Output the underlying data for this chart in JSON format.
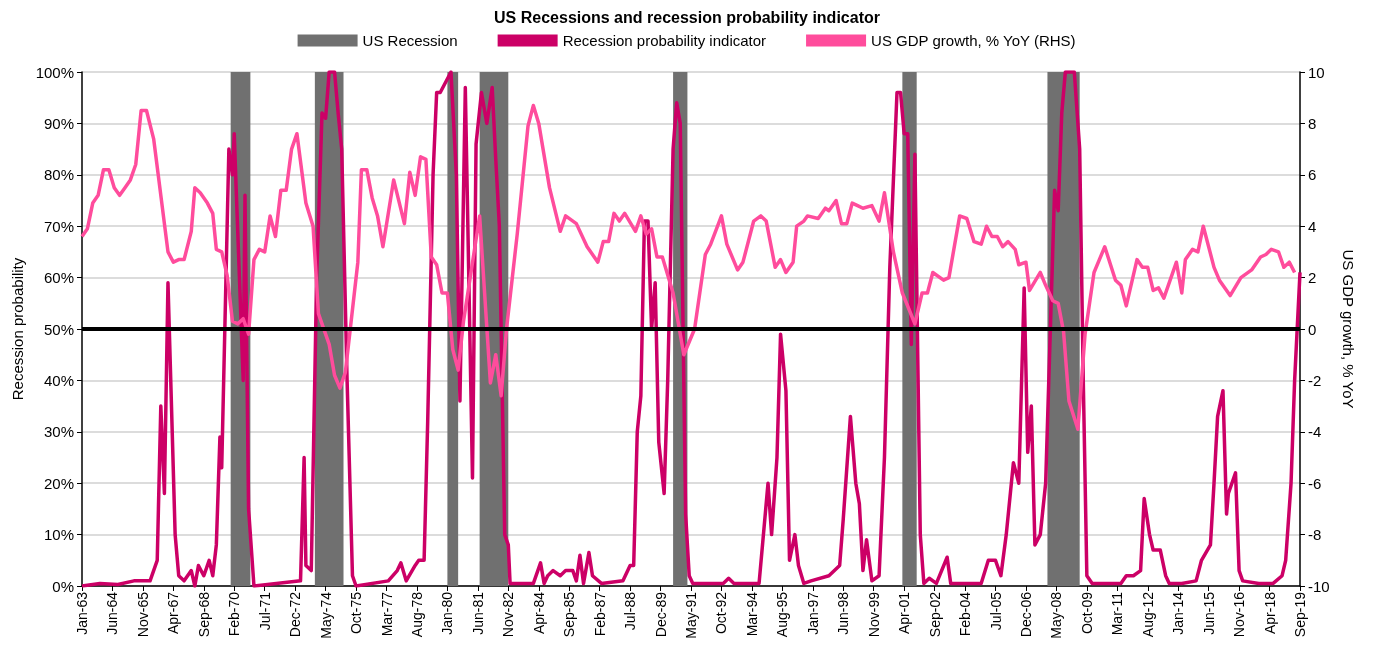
{
  "chart_data": {
    "type": "line",
    "title": "US Recessions and recession probability indicator",
    "ylabel": "Recession probability",
    "y2label": "US GDP growth, % YoY",
    "legend": "top",
    "grid": "y",
    "xlim": [
      "1963-01",
      "2019-09"
    ],
    "xticks": [
      {
        "value": "1963-01",
        "label": "Jan-63"
      },
      {
        "value": "1964-06",
        "label": "Jun-64"
      },
      {
        "value": "1965-11",
        "label": "Nov-65"
      },
      {
        "value": "1967-04",
        "label": "Apr-67"
      },
      {
        "value": "1968-09",
        "label": "Sep-68"
      },
      {
        "value": "1970-02",
        "label": "Feb-70"
      },
      {
        "value": "1971-07",
        "label": "Jul-71"
      },
      {
        "value": "1972-12",
        "label": "Dec-72"
      },
      {
        "value": "1974-05",
        "label": "May-74"
      },
      {
        "value": "1975-10",
        "label": "Oct-75"
      },
      {
        "value": "1977-03",
        "label": "Mar-77"
      },
      {
        "value": "1978-08",
        "label": "Aug-78"
      },
      {
        "value": "1980-01",
        "label": "Jan-80"
      },
      {
        "value": "1981-06",
        "label": "Jun-81"
      },
      {
        "value": "1982-11",
        "label": "Nov-82"
      },
      {
        "value": "1984-04",
        "label": "Apr-84"
      },
      {
        "value": "1985-09",
        "label": "Sep-85"
      },
      {
        "value": "1987-02",
        "label": "Feb-87"
      },
      {
        "value": "1988-07",
        "label": "Jul-88"
      },
      {
        "value": "1989-12",
        "label": "Dec-89"
      },
      {
        "value": "1991-05",
        "label": "May-91"
      },
      {
        "value": "1992-10",
        "label": "Oct-92"
      },
      {
        "value": "1994-03",
        "label": "Mar-94"
      },
      {
        "value": "1995-08",
        "label": "Aug-95"
      },
      {
        "value": "1997-01",
        "label": "Jan-97"
      },
      {
        "value": "1998-06",
        "label": "Jun-98"
      },
      {
        "value": "1999-11",
        "label": "Nov-99"
      },
      {
        "value": "2001-04",
        "label": "Apr-01"
      },
      {
        "value": "2002-09",
        "label": "Sep-02"
      },
      {
        "value": "2004-02",
        "label": "Feb-04"
      },
      {
        "value": "2005-07",
        "label": "Jul-05"
      },
      {
        "value": "2006-12",
        "label": "Dec-06"
      },
      {
        "value": "2008-05",
        "label": "May-08"
      },
      {
        "value": "2009-10",
        "label": "Oct-09"
      },
      {
        "value": "2011-03",
        "label": "Mar-11"
      },
      {
        "value": "2012-08",
        "label": "Aug-12"
      },
      {
        "value": "2014-01",
        "label": "Jan-14"
      },
      {
        "value": "2015-06",
        "label": "Jun-15"
      },
      {
        "value": "2016-11",
        "label": "Nov-16"
      },
      {
        "value": "2018-04",
        "label": "Apr-18"
      },
      {
        "value": "2019-09",
        "label": "Sep-19"
      }
    ],
    "ylim": [
      0,
      100
    ],
    "yticks": [
      {
        "value": 0,
        "label": "0%"
      },
      {
        "value": 10,
        "label": "10%"
      },
      {
        "value": 20,
        "label": "20%"
      },
      {
        "value": 30,
        "label": "30%"
      },
      {
        "value": 40,
        "label": "40%"
      },
      {
        "value": 50,
        "label": "50%"
      },
      {
        "value": 60,
        "label": "60%"
      },
      {
        "value": 70,
        "label": "70%"
      },
      {
        "value": 80,
        "label": "80%"
      },
      {
        "value": 90,
        "label": "90%"
      },
      {
        "value": 100,
        "label": "100%"
      }
    ],
    "y2lim": [
      -10,
      10
    ],
    "y2ticks": [
      -10,
      -8,
      -6,
      -4,
      -2,
      0,
      2,
      4,
      6,
      8,
      10
    ],
    "bands": [
      {
        "axis": "x",
        "from": "1969-12",
        "to": "1970-11",
        "label": "US Recession",
        "color": "#707070"
      },
      {
        "axis": "x",
        "from": "1973-11",
        "to": "1975-03",
        "color": "#707070"
      },
      {
        "axis": "x",
        "from": "1980-01",
        "to": "1980-07",
        "color": "#707070"
      },
      {
        "axis": "x",
        "from": "1981-07",
        "to": "1982-11",
        "color": "#707070"
      },
      {
        "axis": "x",
        "from": "1990-07",
        "to": "1991-03",
        "color": "#707070"
      },
      {
        "axis": "x",
        "from": "2001-03",
        "to": "2001-11",
        "color": "#707070"
      },
      {
        "axis": "x",
        "from": "2007-12",
        "to": "2009-06",
        "color": "#707070"
      }
    ],
    "ref_lines": [
      {
        "axis": "y",
        "value": 50,
        "color": "#000000"
      }
    ],
    "series": [
      {
        "name": "Recession probability indicator",
        "color": "#cc0066",
        "x": [
          "1963-01",
          "1963-11",
          "1964-09",
          "1965-06",
          "1966-03",
          "1966-07",
          "1966-09",
          "1966-11",
          "1967-01",
          "1967-05",
          "1967-07",
          "1967-10",
          "1968-02",
          "1968-04",
          "1968-06",
          "1968-09",
          "1968-12",
          "1969-02",
          "1969-04",
          "1969-06",
          "1969-07",
          "1969-11",
          "1970-01",
          "1970-02",
          "1970-03",
          "1970-07",
          "1970-08",
          "1970-10",
          "1971-01",
          "1973-03",
          "1973-05",
          "1973-06",
          "1973-09",
          "1973-12",
          "1974-03",
          "1974-05",
          "1974-07",
          "1974-10",
          "1974-12",
          "1975-02",
          "1975-05",
          "1975-08",
          "1975-10",
          "1977-04",
          "1977-09",
          "1977-11",
          "1978-02",
          "1978-07",
          "1978-09",
          "1978-12",
          "1979-02",
          "1979-05",
          "1979-07",
          "1979-09",
          "1979-12",
          "1980-03",
          "1980-06",
          "1980-08",
          "1980-11",
          "1981-03",
          "1981-05",
          "1981-08",
          "1981-11",
          "1982-02",
          "1982-04",
          "1982-06",
          "1982-09",
          "1982-11",
          "1982-12",
          "1984-01",
          "1984-05",
          "1984-07",
          "1984-09",
          "1984-12",
          "1985-04",
          "1985-07",
          "1985-11",
          "1986-01",
          "1986-03",
          "1986-05",
          "1986-08",
          "1986-10",
          "1987-03",
          "1988-03",
          "1988-07",
          "1988-09",
          "1988-11",
          "1989-01",
          "1989-03",
          "1989-05",
          "1989-07",
          "1989-09",
          "1989-11",
          "1990-02",
          "1990-04",
          "1990-07",
          "1990-09",
          "1990-11",
          "1991-02",
          "1991-04",
          "1991-06",
          "1992-11",
          "1993-02",
          "1993-05",
          "1994-07",
          "1994-12",
          "1995-02",
          "1995-05",
          "1995-07",
          "1995-10",
          "1995-12",
          "1996-03",
          "1996-05",
          "1996-08",
          "1996-12",
          "1997-10",
          "1998-04",
          "1998-06",
          "1998-10",
          "1999-01",
          "1999-03",
          "1999-05",
          "1999-07",
          "1999-10",
          "2000-02",
          "2000-05",
          "2000-08",
          "2000-12",
          "2001-02",
          "2001-04",
          "2001-06",
          "2001-08",
          "2001-10",
          "2002-01",
          "2002-03",
          "2002-06",
          "2002-10",
          "2003-04",
          "2003-06",
          "2004-11",
          "2005-03",
          "2005-07",
          "2005-10",
          "2006-01",
          "2006-05",
          "2006-08",
          "2006-11",
          "2007-01",
          "2007-03",
          "2007-05",
          "2007-08",
          "2007-11",
          "2008-04",
          "2008-06",
          "2008-08",
          "2008-10",
          "2009-03",
          "2009-06",
          "2009-08",
          "2009-10",
          "2010-01",
          "2011-05",
          "2011-08",
          "2011-12",
          "2012-04",
          "2012-06",
          "2012-09",
          "2012-11",
          "2013-03",
          "2013-06",
          "2013-08",
          "2014-03",
          "2014-11",
          "2015-02",
          "2015-07",
          "2015-09",
          "2015-11",
          "2016-02",
          "2016-04",
          "2016-05",
          "2016-09",
          "2016-11",
          "2017-01",
          "2017-10",
          "2018-06",
          "2018-11",
          "2019-01",
          "2019-04",
          "2019-06",
          "2019-09"
        ],
        "values": [
          0,
          0.5,
          0.3,
          1,
          1,
          5,
          35,
          18,
          59,
          10,
          2,
          1,
          3,
          0,
          4,
          2,
          5,
          2,
          8,
          29,
          23,
          85,
          80,
          88,
          78,
          40,
          76,
          15,
          0,
          1,
          25,
          4,
          3,
          60,
          92,
          91,
          100,
          100,
          92,
          85,
          40,
          2,
          0,
          1,
          3,
          4.5,
          1,
          4,
          5,
          5,
          32,
          80,
          96,
          96,
          98,
          100,
          80,
          36,
          97,
          21,
          86,
          96,
          90,
          97,
          83,
          70,
          10,
          8,
          0.5,
          0.5,
          4.5,
          0.5,
          2,
          3,
          2,
          3,
          3,
          1,
          6,
          0.5,
          6.5,
          2,
          0.5,
          1,
          4,
          4,
          30,
          37,
          71,
          71,
          50,
          59,
          28,
          18,
          40,
          85,
          94,
          90,
          14,
          2,
          0.5,
          0.5,
          1.5,
          0.5,
          0.5,
          20,
          10,
          25,
          49,
          38,
          5,
          10,
          4,
          0.5,
          1,
          2,
          4,
          13,
          33,
          20,
          16,
          3,
          9,
          1,
          2,
          25,
          62,
          96,
          96,
          88,
          88,
          47,
          84,
          10,
          0.5,
          1.5,
          0.5,
          5.6,
          0.5,
          0.5,
          5,
          5,
          2,
          10,
          24,
          20,
          58,
          26,
          35,
          8,
          10,
          20,
          77,
          73,
          92,
          100,
          100,
          85,
          40,
          2,
          0.5,
          0.5,
          2,
          2,
          3,
          17,
          10,
          7,
          7,
          2,
          0.5,
          0.5,
          1,
          5,
          8,
          20,
          33,
          38,
          14,
          18,
          22,
          3,
          1,
          0.5,
          0.5,
          2,
          5,
          20,
          40,
          61
        ]
      },
      {
        "name": "US GDP growth, % YoY (RHS)",
        "color": "#ff4c9c",
        "axis": "y2",
        "x": [
          "1963-01",
          "1963-04",
          "1963-07",
          "1963-10",
          "1964-01",
          "1964-04",
          "1964-07",
          "1964-10",
          "1965-01",
          "1965-04",
          "1965-07",
          "1965-10",
          "1966-01",
          "1966-05",
          "1967-01",
          "1967-04",
          "1967-07",
          "1967-10",
          "1968-02",
          "1968-04",
          "1968-07",
          "1968-11",
          "1969-02",
          "1969-04",
          "1969-07",
          "1969-10",
          "1970-01",
          "1970-04",
          "1970-07",
          "1970-10",
          "1971-01",
          "1971-04",
          "1971-07",
          "1971-10",
          "1972-01",
          "1972-04",
          "1972-07",
          "1972-10",
          "1973-01",
          "1973-06",
          "1973-10",
          "1974-01",
          "1974-07",
          "1974-10",
          "1975-01",
          "1975-04",
          "1975-11",
          "1976-01",
          "1976-04",
          "1976-07",
          "1976-10",
          "1977-01",
          "1977-07",
          "1978-01",
          "1978-04",
          "1978-07",
          "1978-10",
          "1979-01",
          "1979-04",
          "1979-07",
          "1979-10",
          "1980-01",
          "1980-04",
          "1980-07",
          "1980-10",
          "1981-07",
          "1982-01",
          "1982-04",
          "1982-07",
          "1982-10",
          "1983-04",
          "1983-10",
          "1984-01",
          "1984-04",
          "1984-10",
          "1985-04",
          "1985-07",
          "1986-01",
          "1986-07",
          "1987-01",
          "1987-04",
          "1987-07",
          "1987-10",
          "1988-01",
          "1988-04",
          "1988-10",
          "1989-01",
          "1989-04",
          "1989-07",
          "1989-10",
          "1990-01",
          "1990-07",
          "1991-01",
          "1991-07",
          "1992-01",
          "1992-04",
          "1992-10",
          "1993-01",
          "1993-07",
          "1993-10",
          "1994-04",
          "1994-08",
          "1994-11",
          "1995-04",
          "1995-07",
          "1995-10",
          "1996-02",
          "1996-04",
          "1996-08",
          "1996-10",
          "1997-04",
          "1997-08",
          "1997-10",
          "1998-02",
          "1998-05",
          "1998-08",
          "1998-11",
          "1999-02",
          "1999-05",
          "1999-10",
          "2000-02",
          "2000-05",
          "2000-10",
          "2001-03",
          "2001-10",
          "2002-02",
          "2002-05",
          "2002-08",
          "2003-02",
          "2003-05",
          "2003-11",
          "2004-03",
          "2004-07",
          "2004-11",
          "2005-02",
          "2005-05",
          "2005-08",
          "2005-11",
          "2006-02",
          "2006-06",
          "2006-08",
          "2006-12",
          "2007-02",
          "2007-08",
          "2007-11",
          "2008-03",
          "2008-06",
          "2008-09",
          "2008-12",
          "2009-05",
          "2009-09",
          "2010-02",
          "2010-08",
          "2011-02",
          "2011-05",
          "2011-08",
          "2012-02",
          "2012-05",
          "2012-08",
          "2012-11",
          "2013-02",
          "2013-05",
          "2013-12",
          "2014-03",
          "2014-05",
          "2014-09",
          "2014-12",
          "2015-03",
          "2015-09",
          "2015-12",
          "2016-06",
          "2016-12",
          "2017-06",
          "2017-11",
          "2018-02",
          "2018-05",
          "2018-09",
          "2018-12",
          "2019-03",
          "2019-06"
        ],
        "values": [
          3.6,
          3.9,
          4.9,
          5.2,
          6.2,
          6.2,
          5.5,
          5.2,
          5.5,
          5.8,
          6.4,
          8.5,
          8.5,
          7.4,
          3,
          2.6,
          2.7,
          2.7,
          3.8,
          5.5,
          5.3,
          4.9,
          4.5,
          3.1,
          3,
          2.1,
          0.3,
          0.2,
          0.4,
          -0.2,
          2.7,
          3.1,
          3,
          4.4,
          3.6,
          5.4,
          5.4,
          7,
          7.6,
          4.9,
          4,
          0.6,
          -0.6,
          -1.8,
          -2.3,
          -1.7,
          2.6,
          6.2,
          6.2,
          5.1,
          4.4,
          3.2,
          5.8,
          4.1,
          6.1,
          5.2,
          6.7,
          6.6,
          2.8,
          2.5,
          1.4,
          1.4,
          -0.8,
          -1.6,
          0.3,
          4.4,
          -2.1,
          -1,
          -2.6,
          0,
          3.7,
          7.9,
          8.7,
          8,
          5.5,
          3.8,
          4.4,
          4.1,
          3.2,
          2.6,
          3.4,
          3.4,
          4.5,
          4.2,
          4.5,
          3.8,
          4.4,
          3.7,
          3.9,
          2.8,
          2.8,
          1.4,
          -1,
          0,
          2.9,
          3.3,
          4.4,
          3.3,
          2.3,
          2.6,
          4.2,
          4.4,
          4.2,
          2.4,
          2.7,
          2.2,
          2.6,
          4,
          4.2,
          4.4,
          4.3,
          4.7,
          4.6,
          5,
          4.1,
          4.1,
          4.9,
          4.8,
          4.7,
          4.8,
          4.2,
          5.3,
          3,
          1.4,
          0.2,
          1.4,
          1.4,
          2.2,
          1.9,
          2,
          4.4,
          4.3,
          3.4,
          3.3,
          4,
          3.6,
          3.6,
          3.2,
          3.4,
          3.1,
          2.5,
          2.6,
          1.5,
          2.2,
          1.7,
          1.1,
          1,
          -0.1,
          -2.8,
          -3.9,
          -0.2,
          2.2,
          3.2,
          1.9,
          1.7,
          0.9,
          2.7,
          2.4,
          2.4,
          1.5,
          1.6,
          1.2,
          2.6,
          1.4,
          2.7,
          3.1,
          3,
          4,
          2.4,
          1.9,
          1.3,
          2,
          2.3,
          2.8,
          2.9,
          3.1,
          3,
          2.4,
          2.6,
          2.2
        ]
      }
    ]
  }
}
